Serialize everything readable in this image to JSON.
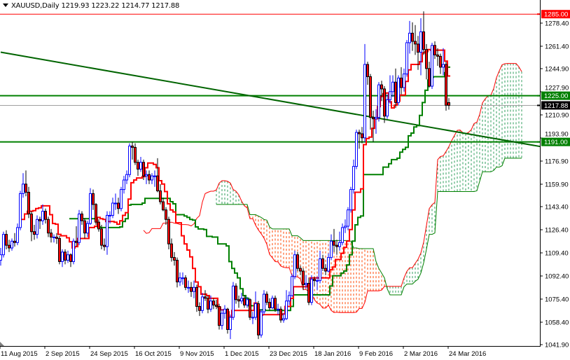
{
  "header": {
    "symbol": "XAUUSD,Daily",
    "open": "1219.93",
    "high": "1223.22",
    "low": "1214.77",
    "close": "1217.88"
  },
  "colors": {
    "bull_body": "#ffffff",
    "bull_outline": "#0000ff",
    "bear_body": "#ff0000",
    "bear_outline": "#000000",
    "tenkan": "#ff0000",
    "kijun": "#008000",
    "span_a": "#ff0000",
    "span_b": "#008000",
    "cloud_bear": "#ff4500",
    "cloud_bull": "#2e9e5b",
    "trendline": "#006400",
    "resistance_red": "#ff0000",
    "level_green": "#008000",
    "bid_line": "#a0a0a0"
  },
  "chart_data": {
    "type": "candlestick",
    "symbol": "XAUUSD",
    "timeframe": "Daily",
    "ylim": [
      1041.9,
      1285.0
    ],
    "y_ticks": [
      "1278.40",
      "1261.40",
      "1244.90",
      "1227.90",
      "1210.90",
      "1193.90",
      "1176.90",
      "1159.90",
      "1143.40",
      "1126.40",
      "1109.40",
      "1092.40",
      "1075.40",
      "1058.40",
      "1041.90"
    ],
    "x_ticks": [
      {
        "bar": 0,
        "label": "11 Aug 2015"
      },
      {
        "bar": 16,
        "label": "2 Sep 2015"
      },
      {
        "bar": 32,
        "label": "24 Sep 2015"
      },
      {
        "bar": 48,
        "label": "16 Oct 2015"
      },
      {
        "bar": 64,
        "label": "9 Nov 2015"
      },
      {
        "bar": 80,
        "label": "1 Dec 2015"
      },
      {
        "bar": 96,
        "label": "23 Dec 2015"
      },
      {
        "bar": 112,
        "label": "18 Jan 2016"
      },
      {
        "bar": 128,
        "label": "9 Feb 2016"
      },
      {
        "bar": 144,
        "label": "2 Mar 2016"
      },
      {
        "bar": 160,
        "label": "24 Mar 2016"
      }
    ],
    "ohlc": [
      [
        1104,
        1113,
        1100,
        1108
      ],
      [
        1108,
        1125,
        1106,
        1123
      ],
      [
        1123,
        1126,
        1112,
        1115
      ],
      [
        1115,
        1119,
        1110,
        1113
      ],
      [
        1113,
        1120,
        1111,
        1118
      ],
      [
        1118,
        1124,
        1114,
        1117
      ],
      [
        1117,
        1131,
        1115,
        1128
      ],
      [
        1128,
        1155,
        1126,
        1153
      ],
      [
        1153,
        1168,
        1150,
        1160
      ],
      [
        1160,
        1170,
        1151,
        1154
      ],
      [
        1154,
        1158,
        1135,
        1138
      ],
      [
        1138,
        1140,
        1118,
        1125
      ],
      [
        1125,
        1130,
        1119,
        1123
      ],
      [
        1123,
        1137,
        1120,
        1134
      ],
      [
        1134,
        1136,
        1127,
        1133
      ],
      [
        1133,
        1145,
        1130,
        1140
      ],
      [
        1140,
        1142,
        1131,
        1134
      ],
      [
        1134,
        1136,
        1121,
        1124
      ],
      [
        1124,
        1127,
        1117,
        1121
      ],
      [
        1121,
        1123,
        1117,
        1121
      ],
      [
        1121,
        1124,
        1116,
        1120
      ],
      [
        1120,
        1122,
        1101,
        1103
      ],
      [
        1103,
        1112,
        1099,
        1110
      ],
      [
        1110,
        1112,
        1101,
        1104
      ],
      [
        1104,
        1111,
        1102,
        1108
      ],
      [
        1108,
        1109,
        1099,
        1103
      ],
      [
        1103,
        1120,
        1101,
        1118
      ],
      [
        1118,
        1129,
        1114,
        1117
      ],
      [
        1117,
        1141,
        1115,
        1138
      ],
      [
        1138,
        1140,
        1130,
        1133
      ],
      [
        1133,
        1135,
        1120,
        1124
      ],
      [
        1124,
        1133,
        1121,
        1131
      ],
      [
        1131,
        1157,
        1130,
        1153
      ],
      [
        1153,
        1156,
        1141,
        1145
      ],
      [
        1145,
        1146,
        1130,
        1132
      ],
      [
        1132,
        1134,
        1125,
        1127
      ],
      [
        1127,
        1130,
        1112,
        1115
      ],
      [
        1115,
        1120,
        1111,
        1114
      ],
      [
        1114,
        1140,
        1108,
        1137
      ],
      [
        1137,
        1140,
        1131,
        1137
      ],
      [
        1137,
        1150,
        1135,
        1146
      ],
      [
        1146,
        1153,
        1141,
        1146
      ],
      [
        1146,
        1150,
        1138,
        1142
      ],
      [
        1142,
        1158,
        1140,
        1156
      ],
      [
        1156,
        1166,
        1153,
        1163
      ],
      [
        1163,
        1170,
        1160,
        1167
      ],
      [
        1167,
        1190,
        1165,
        1188
      ],
      [
        1188,
        1191,
        1178,
        1187
      ],
      [
        1187,
        1190,
        1174,
        1176
      ],
      [
        1176,
        1178,
        1166,
        1171
      ],
      [
        1171,
        1180,
        1169,
        1176
      ],
      [
        1176,
        1178,
        1163,
        1166
      ],
      [
        1166,
        1170,
        1160,
        1167
      ],
      [
        1167,
        1170,
        1160,
        1163
      ],
      [
        1163,
        1168,
        1160,
        1166
      ],
      [
        1166,
        1170,
        1158,
        1166
      ],
      [
        1166,
        1179,
        1154,
        1155
      ],
      [
        1155,
        1160,
        1145,
        1147
      ],
      [
        1147,
        1150,
        1140,
        1141
      ],
      [
        1141,
        1143,
        1130,
        1134
      ],
      [
        1134,
        1136,
        1112,
        1116
      ],
      [
        1116,
        1120,
        1103,
        1106
      ],
      [
        1106,
        1110,
        1100,
        1104
      ],
      [
        1104,
        1106,
        1084,
        1088
      ],
      [
        1088,
        1095,
        1085,
        1091
      ],
      [
        1091,
        1095,
        1086,
        1091
      ],
      [
        1091,
        1093,
        1082,
        1084
      ],
      [
        1084,
        1089,
        1080,
        1084
      ],
      [
        1084,
        1088,
        1077,
        1081
      ],
      [
        1081,
        1089,
        1076,
        1084
      ],
      [
        1084,
        1086,
        1066,
        1070
      ],
      [
        1070,
        1073,
        1063,
        1067
      ],
      [
        1067,
        1080,
        1065,
        1077
      ],
      [
        1077,
        1082,
        1074,
        1076
      ],
      [
        1076,
        1078,
        1065,
        1068
      ],
      [
        1068,
        1078,
        1066,
        1074
      ],
      [
        1074,
        1076,
        1068,
        1071
      ],
      [
        1071,
        1075,
        1068,
        1070
      ],
      [
        1070,
        1072,
        1053,
        1056
      ],
      [
        1056,
        1068,
        1053,
        1065
      ],
      [
        1065,
        1071,
        1061,
        1068
      ],
      [
        1068,
        1069,
        1050,
        1053
      ],
      [
        1053,
        1064,
        1046,
        1062
      ],
      [
        1062,
        1088,
        1060,
        1085
      ],
      [
        1085,
        1087,
        1072,
        1075
      ],
      [
        1075,
        1078,
        1069,
        1074
      ],
      [
        1074,
        1080,
        1072,
        1076
      ],
      [
        1076,
        1078,
        1069,
        1071
      ],
      [
        1071,
        1077,
        1069,
        1075
      ],
      [
        1075,
        1076,
        1060,
        1062
      ],
      [
        1062,
        1066,
        1057,
        1062
      ],
      [
        1062,
        1081,
        1060,
        1072
      ],
      [
        1072,
        1074,
        1046,
        1049
      ],
      [
        1049,
        1068,
        1047,
        1066
      ],
      [
        1066,
        1082,
        1064,
        1079
      ],
      [
        1079,
        1081,
        1071,
        1073
      ],
      [
        1073,
        1076,
        1067,
        1069
      ],
      [
        1069,
        1078,
        1068,
        1076
      ],
      [
        1076,
        1078,
        1066,
        1068
      ],
      [
        1068,
        1072,
        1064,
        1068
      ],
      [
        1068,
        1070,
        1058,
        1060
      ],
      [
        1060,
        1065,
        1058,
        1061
      ],
      [
        1061,
        1082,
        1060,
        1074
      ],
      [
        1074,
        1081,
        1071,
        1078
      ],
      [
        1078,
        1094,
        1077,
        1092
      ],
      [
        1092,
        1111,
        1090,
        1108
      ],
      [
        1108,
        1110,
        1096,
        1098
      ],
      [
        1098,
        1100,
        1093,
        1096
      ],
      [
        1096,
        1098,
        1082,
        1086
      ],
      [
        1086,
        1093,
        1083,
        1087
      ],
      [
        1087,
        1091,
        1071,
        1073
      ],
      [
        1073,
        1093,
        1071,
        1090
      ],
      [
        1090,
        1092,
        1085,
        1089
      ],
      [
        1089,
        1092,
        1082,
        1089
      ],
      [
        1089,
        1111,
        1087,
        1105
      ],
      [
        1105,
        1108,
        1096,
        1098
      ],
      [
        1098,
        1101,
        1093,
        1096
      ],
      [
        1096,
        1109,
        1095,
        1106
      ],
      [
        1106,
        1123,
        1104,
        1118
      ],
      [
        1118,
        1127,
        1110,
        1115
      ],
      [
        1115,
        1119,
        1108,
        1114
      ],
      [
        1114,
        1125,
        1111,
        1117
      ],
      [
        1117,
        1131,
        1115,
        1128
      ],
      [
        1128,
        1134,
        1124,
        1129
      ],
      [
        1129,
        1143,
        1126,
        1141
      ],
      [
        1141,
        1158,
        1139,
        1156
      ],
      [
        1156,
        1178,
        1153,
        1173
      ],
      [
        1173,
        1200,
        1171,
        1198
      ],
      [
        1198,
        1200,
        1186,
        1197
      ],
      [
        1197,
        1202,
        1190,
        1194
      ],
      [
        1194,
        1263,
        1191,
        1248
      ],
      [
        1248,
        1250,
        1233,
        1239
      ],
      [
        1239,
        1241,
        1200,
        1209
      ],
      [
        1209,
        1214,
        1191,
        1208
      ],
      [
        1208,
        1215,
        1197,
        1209
      ],
      [
        1209,
        1235,
        1206,
        1233
      ],
      [
        1233,
        1236,
        1221,
        1230
      ],
      [
        1230,
        1232,
        1205,
        1210
      ],
      [
        1210,
        1226,
        1208,
        1222
      ],
      [
        1222,
        1240,
        1219,
        1228
      ],
      [
        1228,
        1240,
        1224,
        1235
      ],
      [
        1235,
        1245,
        1216,
        1220
      ],
      [
        1220,
        1240,
        1218,
        1238
      ],
      [
        1238,
        1246,
        1226,
        1231
      ],
      [
        1231,
        1245,
        1228,
        1241
      ],
      [
        1241,
        1266,
        1239,
        1264
      ],
      [
        1264,
        1280,
        1256,
        1271
      ],
      [
        1271,
        1279,
        1258,
        1265
      ],
      [
        1265,
        1277,
        1255,
        1263
      ],
      [
        1263,
        1269,
        1244,
        1257
      ],
      [
        1257,
        1282,
        1240,
        1272
      ],
      [
        1272,
        1287,
        1255,
        1259
      ],
      [
        1259,
        1263,
        1237,
        1245
      ],
      [
        1245,
        1250,
        1231,
        1232
      ],
      [
        1232,
        1264,
        1230,
        1262
      ],
      [
        1262,
        1265,
        1252,
        1255
      ],
      [
        1255,
        1260,
        1247,
        1254
      ],
      [
        1254,
        1256,
        1241,
        1246
      ],
      [
        1246,
        1260,
        1240,
        1248
      ],
      [
        1248,
        1250,
        1214,
        1218
      ],
      [
        1219.93,
        1223.22,
        1214.77,
        1217.88
      ]
    ],
    "horizontal_levels": [
      {
        "price": 1285.0,
        "label": "1285.00",
        "color": "#ff0000",
        "tag_bg": "#ff0000"
      },
      {
        "price": 1225.0,
        "label": "1225.00",
        "color": "#008000",
        "tag_bg": "#008000",
        "thick": true
      },
      {
        "price": 1191.0,
        "label": "1191.00",
        "color": "#008000",
        "tag_bg": "#008000",
        "thick": true
      }
    ],
    "bid": {
      "price": 1217.88,
      "label": "1217.88"
    },
    "trendline": {
      "from": {
        "bar": 0,
        "price": 1257
      },
      "to": {
        "bar": 193,
        "price": 1187.5
      }
    }
  }
}
